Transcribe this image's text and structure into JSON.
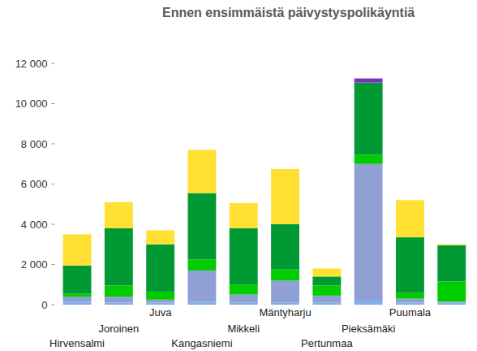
{
  "chart_data": {
    "type": "bar",
    "stacked": true,
    "title": "Ennen ensimmäistä päivystyspolikäyntiä",
    "categories": [
      "Hirvensalmi",
      "Joroinen",
      "Juva",
      "Kangasniemi",
      "Mikkeli",
      "Mäntyharju",
      "Pertunmaa",
      "Pieksämäki",
      "Puumala",
      null
    ],
    "series": [
      {
        "color": "#7fb2e8",
        "values": [
          150,
          100,
          100,
          150,
          100,
          100,
          100,
          200,
          100,
          100
        ]
      },
      {
        "color": "#909fd4",
        "values": [
          250,
          300,
          150,
          1550,
          400,
          1100,
          350,
          6800,
          200,
          50
        ]
      },
      {
        "color": "#00cc00",
        "values": [
          150,
          550,
          400,
          550,
          500,
          550,
          500,
          450,
          300,
          1000
        ]
      },
      {
        "color": "#009933",
        "values": [
          1400,
          2850,
          2350,
          3300,
          2800,
          2250,
          450,
          3600,
          2750,
          1800
        ]
      },
      {
        "color": "#ffe033",
        "values": [
          1550,
          1300,
          700,
          2150,
          1250,
          2750,
          400,
          0,
          1850,
          50
        ]
      },
      {
        "color": "#7a2fbf",
        "values": [
          0,
          0,
          0,
          0,
          0,
          0,
          0,
          200,
          0,
          0
        ]
      }
    ],
    "ylim": [
      0,
      12000
    ],
    "yticks": [
      0,
      {
        "value": 2000,
        "label": "2 000"
      },
      {
        "value": 4000,
        "label": "4 000"
      },
      {
        "value": 6000,
        "label": "6 000"
      },
      {
        "value": 8000,
        "label": "8 000"
      },
      {
        "value": 10000,
        "label": "10 000"
      },
      {
        "value": 12000,
        "label": "12 000"
      }
    ],
    "grid": false
  }
}
